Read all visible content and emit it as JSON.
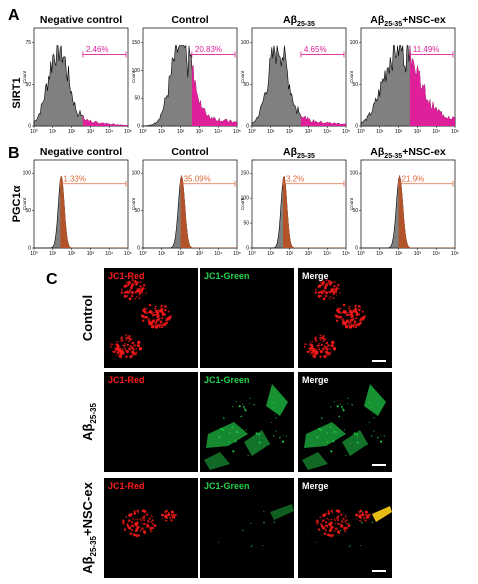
{
  "panels": {
    "A": "A",
    "B": "B",
    "C": "C"
  },
  "colors": {
    "sirt1_gate": "#e0209a",
    "pgc_gate": "#e06a3a",
    "pgc_fill": "#b3532a",
    "hist_fill": "#808080",
    "jc1_red": "#ff1a1a",
    "jc1_green": "#21d14a",
    "scale_bar": "#ffffff"
  },
  "chart_data": [
    {
      "type": "histogram",
      "panel": "A",
      "row_label": "SIRT1",
      "ylabel": "Count",
      "x_scale": "log",
      "x_ticks": [
        "10⁰",
        "10¹",
        "10²",
        "10³",
        "10⁴",
        "10⁵"
      ],
      "subplots": [
        {
          "title": "Negative control",
          "positive_pct": "2.46%",
          "y_ticks": [
            "0",
            "50",
            "75"
          ],
          "peak_decade": 1.3,
          "width": 0.75
        },
        {
          "title": "Control",
          "positive_pct": "20.83%",
          "y_ticks": [
            "0",
            "50",
            "100",
            "150"
          ],
          "peak_decade": 2.0,
          "width": 0.75
        },
        {
          "title": "Aβ25-35",
          "positive_pct": "4.65%",
          "y_ticks": [
            "0",
            "50",
            "100"
          ],
          "peak_decade": 1.4,
          "width": 0.75
        },
        {
          "title": "Aβ25-35+NSC-ex",
          "positive_pct": "11.49%",
          "y_ticks": [
            "0",
            "50",
            "100"
          ],
          "peak_decade": 2.0,
          "width": 1.1
        }
      ]
    },
    {
      "type": "histogram",
      "panel": "B",
      "row_label": "PGC1α",
      "ylabel": "Count",
      "x_scale": "log",
      "x_ticks": [
        "10⁰",
        "10¹",
        "10²",
        "10³",
        "10⁴",
        "10⁵"
      ],
      "subplots": [
        {
          "title": "Negative control",
          "positive_pct": "1.33%",
          "y_ticks": [
            "0",
            "50",
            "100"
          ],
          "peak_decade": 1.45,
          "width": 0.22
        },
        {
          "title": "Control",
          "positive_pct": "35.09%",
          "y_ticks": [
            "0",
            "50",
            "100"
          ],
          "peak_decade": 2.05,
          "width": 0.24
        },
        {
          "title": "Aβ25-35",
          "positive_pct": "3.2%",
          "y_ticks": [
            "0",
            "50",
            "100",
            "150"
          ],
          "peak_decade": 1.7,
          "width": 0.22
        },
        {
          "title": "Aβ25-35+NSC-ex",
          "positive_pct": "21.9%",
          "y_ticks": [
            "0",
            "50",
            "100"
          ],
          "peak_decade": 2.05,
          "width": 0.24
        }
      ]
    }
  ],
  "panel_c": {
    "channel_labels": [
      "JC1-Red",
      "JC1-Green",
      "Merge"
    ],
    "rows": [
      {
        "label": "Control",
        "red": "high",
        "green": "none"
      },
      {
        "label": "Aβ25-35",
        "red": "none",
        "green": "high"
      },
      {
        "label": "Aβ25-35+NSC-ex",
        "red": "high",
        "green": "low"
      }
    ]
  }
}
